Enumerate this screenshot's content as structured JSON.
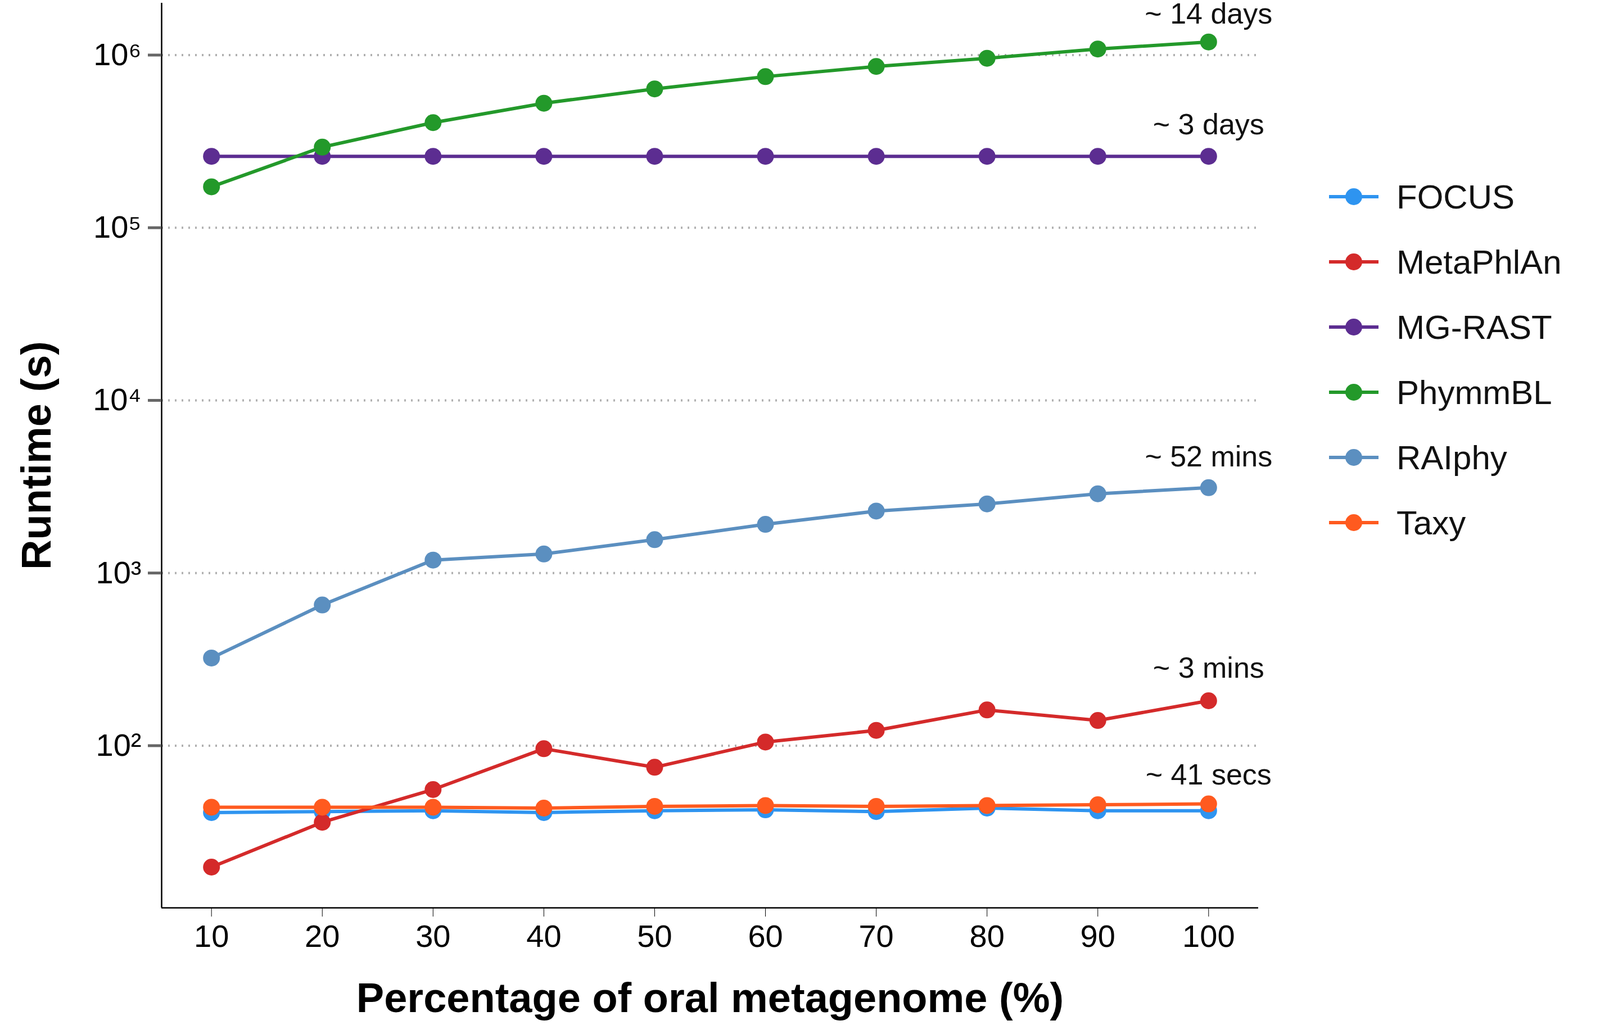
{
  "chart_data": {
    "type": "line",
    "x_label": "Percentage of oral metagenome (%)",
    "y_label": "Runtime (s)",
    "log": "y",
    "grid": true,
    "legend": "right",
    "marker": "circle",
    "x": [
      10,
      20,
      30,
      40,
      50,
      60,
      70,
      80,
      90,
      100
    ],
    "xlim": [
      5.5,
      104.5
    ],
    "xticks": [
      10,
      20,
      30,
      40,
      50,
      60,
      70,
      80,
      90,
      100
    ],
    "ylim": [
      11.5,
      2000000
    ],
    "yticks": [
      {
        "value": 100,
        "label": "10²"
      },
      {
        "value": 1000,
        "label": "10³"
      },
      {
        "value": 10000,
        "label": "10⁴"
      },
      {
        "value": 100000,
        "label": "10⁵"
      },
      {
        "value": 1000000,
        "label": "10⁶"
      }
    ],
    "series": [
      {
        "name": "FOCUS",
        "color": "#2e94f0",
        "values": [
          41,
          41.5,
          42,
          41,
          42,
          42.5,
          41.5,
          43.5,
          42,
          42
        ]
      },
      {
        "name": "MetaPhlAn",
        "color": "#d42a2a",
        "values": [
          19.8,
          36,
          55.7,
          96,
          75,
          105,
          122.6,
          161,
          140,
          182
        ]
      },
      {
        "name": "MG-RAST",
        "color": "#5c2d91",
        "values": [
          259200,
          259200,
          259200,
          259200,
          259200,
          259200,
          259200,
          259200,
          259200,
          259200
        ]
      },
      {
        "name": "PhymmBL",
        "color": "#23992a",
        "values": [
          172600,
          293000,
          406000,
          526000,
          637000,
          750000,
          859000,
          958000,
          1084000,
          1191000
        ]
      },
      {
        "name": "RAIphy",
        "color": "#5b8fc0",
        "values": [
          322,
          653,
          1188,
          1289,
          1560,
          1914,
          2284,
          2513,
          2876,
          3120
        ]
      },
      {
        "name": "Taxy",
        "color": "#ff5a1f",
        "values": [
          44,
          44,
          44,
          43.5,
          44.5,
          45,
          44.5,
          45,
          45.5,
          46
        ]
      }
    ],
    "annotations": [
      {
        "text": "~ 14 days",
        "x": 100,
        "y": 1720000
      },
      {
        "text": "~ 3 days",
        "x": 100,
        "y": 394000
      },
      {
        "text": "~ 52 mins",
        "x": 100,
        "y": 4700
      },
      {
        "text": "~ 3 mins",
        "x": 100,
        "y": 281
      },
      {
        "text": "~ 41 secs",
        "x": 100,
        "y": 67.4
      }
    ]
  }
}
